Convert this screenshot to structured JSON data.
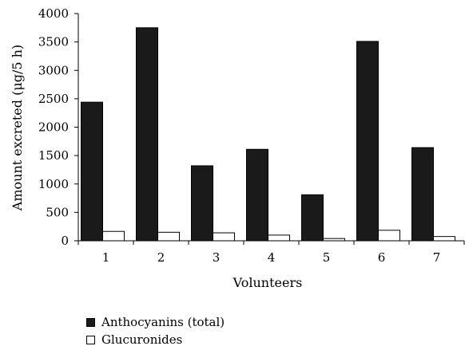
{
  "chart_data": {
    "type": "bar",
    "categories": [
      "1",
      "2",
      "3",
      "4",
      "5",
      "6",
      "7"
    ],
    "series": [
      {
        "name": "Anthocyanins (total)",
        "values": [
          2440,
          3750,
          1320,
          1610,
          810,
          3510,
          1640
        ],
        "color": "#1a1a1a"
      },
      {
        "name": "Glucuronides",
        "values": [
          165,
          150,
          140,
          100,
          40,
          185,
          75
        ],
        "color": "#ffffff"
      }
    ],
    "xlabel": "Volunteers",
    "ylabel": "Amount excreted (μg/5 h)",
    "ylim": [
      0,
      4000
    ],
    "yticks": [
      0,
      500,
      1000,
      1500,
      2000,
      2500,
      3000,
      3500,
      4000
    ],
    "grid": false,
    "legend_position": "bottom-left"
  }
}
